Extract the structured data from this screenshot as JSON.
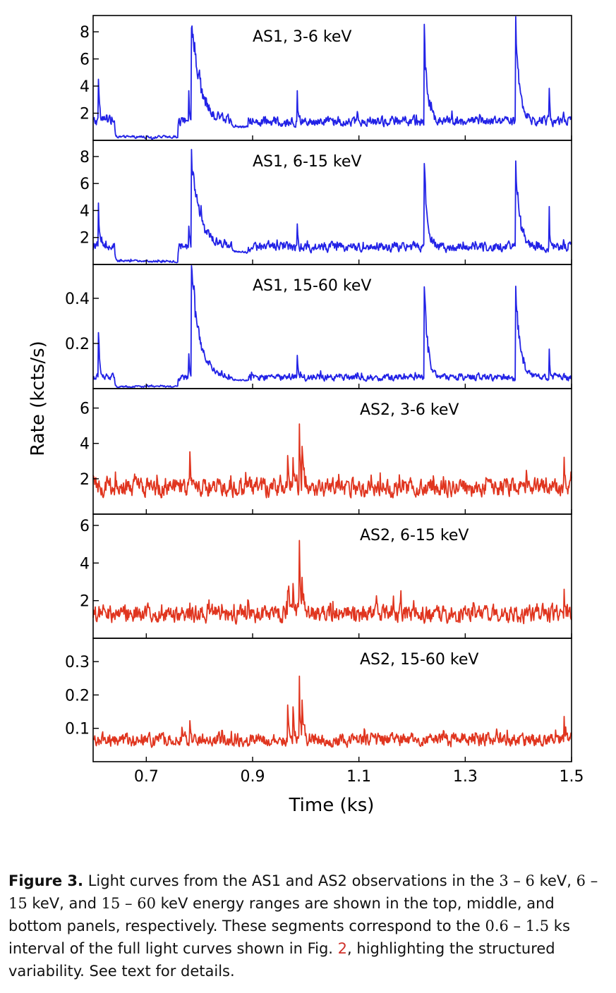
{
  "chart_data": [
    {
      "type": "line",
      "panel_label": "AS1, 3-6 keV",
      "color": "#2222e6",
      "ylabel": "",
      "ylim": [
        0,
        9.2
      ],
      "yticks": [
        2,
        4,
        6,
        8
      ],
      "xlim": [
        0.6,
        1.5
      ],
      "xticks": [
        0.7,
        0.9,
        1.1,
        1.3,
        1.5
      ],
      "baseline": 1.4,
      "noise": 0.55,
      "quiet": [
        [
          0.64,
          0.7
        ],
        [
          0.75,
          1.5
        ]
      ],
      "events": [
        {
          "t": 0.6095,
          "peak": 5.4,
          "decay": 0.002
        },
        {
          "t": 0.71,
          "peak": 0.0,
          "decay": 0.001
        },
        {
          "t": 0.7795,
          "peak": 4.3,
          "decay": 0.0015
        },
        {
          "t": 0.7845,
          "peak": 8.9,
          "decay": 0.016
        },
        {
          "t": 0.9837,
          "peak": 3.8,
          "decay": 0.0015
        },
        {
          "t": 1.2225,
          "peak": 8.5,
          "decay": 0.006
        },
        {
          "t": 1.3945,
          "peak": 8.3,
          "decay": 0.008
        },
        {
          "t": 1.4575,
          "peak": 5.8,
          "decay": 0.0012
        }
      ]
    },
    {
      "type": "line",
      "panel_label": "AS1, 6-15 keV",
      "color": "#2222e6",
      "ylabel": "",
      "ylim": [
        0,
        9.2
      ],
      "yticks": [
        2,
        4,
        6,
        8
      ],
      "xlim": [
        0.6,
        1.5
      ],
      "xticks": [
        0.7,
        0.9,
        1.1,
        1.3,
        1.5
      ],
      "baseline": 1.3,
      "noise": 0.5,
      "quiet": [
        [
          0.64,
          0.7
        ],
        [
          0.75,
          1.5
        ]
      ],
      "events": [
        {
          "t": 0.6095,
          "peak": 4.8,
          "decay": 0.002
        },
        {
          "t": 0.7795,
          "peak": 3.6,
          "decay": 0.0015
        },
        {
          "t": 0.7845,
          "peak": 8.3,
          "decay": 0.016
        },
        {
          "t": 0.9837,
          "peak": 3.0,
          "decay": 0.0015
        },
        {
          "t": 1.2225,
          "peak": 7.9,
          "decay": 0.006
        },
        {
          "t": 1.3945,
          "peak": 7.7,
          "decay": 0.008
        },
        {
          "t": 1.4575,
          "peak": 5.4,
          "decay": 0.0012
        }
      ]
    },
    {
      "type": "line",
      "panel_label": "AS1, 15-60 keV",
      "color": "#2222e6",
      "ylabel": "",
      "ylim": [
        0,
        0.55
      ],
      "yticks": [
        0.2,
        0.4
      ],
      "xlim": [
        0.6,
        1.5
      ],
      "xticks": [
        0.7,
        0.9,
        1.1,
        1.3,
        1.5
      ],
      "baseline": 0.05,
      "noise": 0.022,
      "quiet": [
        [
          0.64,
          0.7
        ],
        [
          0.75,
          1.5
        ]
      ],
      "events": [
        {
          "t": 0.6095,
          "peak": 0.33,
          "decay": 0.002
        },
        {
          "t": 0.7795,
          "peak": 0.2,
          "decay": 0.0015
        },
        {
          "t": 0.7845,
          "peak": 0.53,
          "decay": 0.016
        },
        {
          "t": 0.9837,
          "peak": 0.18,
          "decay": 0.0015
        },
        {
          "t": 1.2225,
          "peak": 0.52,
          "decay": 0.006
        },
        {
          "t": 1.3945,
          "peak": 0.5,
          "decay": 0.008
        },
        {
          "t": 1.4575,
          "peak": 0.28,
          "decay": 0.0012
        }
      ]
    },
    {
      "type": "line",
      "panel_label": "AS2, 3-6 keV",
      "color": "#e0351f",
      "ylabel": "",
      "ylim": [
        0,
        7.1
      ],
      "yticks": [
        2,
        4,
        6
      ],
      "xlim": [
        0.6,
        1.5
      ],
      "xticks": [
        0.7,
        0.9,
        1.1,
        1.3,
        1.5
      ],
      "baseline": 1.5,
      "noise": 0.75,
      "quiet": [],
      "events": [
        {
          "t": 0.7815,
          "peak": 4.1,
          "decay": 0.001
        },
        {
          "t": 0.9655,
          "peak": 3.8,
          "decay": 0.0025
        },
        {
          "t": 0.9755,
          "peak": 3.3,
          "decay": 0.0025
        },
        {
          "t": 0.9875,
          "peak": 6.9,
          "decay": 0.0015
        },
        {
          "t": 0.9925,
          "peak": 4.4,
          "decay": 0.003
        },
        {
          "t": 1.4855,
          "peak": 3.6,
          "decay": 0.0015
        }
      ]
    },
    {
      "type": "line",
      "panel_label": "AS2, 6-15 keV",
      "color": "#e0351f",
      "ylabel": "",
      "ylim": [
        0,
        6.6
      ],
      "yticks": [
        2,
        4,
        6
      ],
      "xlim": [
        0.6,
        1.5
      ],
      "xticks": [
        0.7,
        0.9,
        1.1,
        1.3,
        1.5
      ],
      "baseline": 1.3,
      "noise": 0.7,
      "quiet": [],
      "events": [
        {
          "t": 0.7815,
          "peak": 3.2,
          "decay": 0.001
        },
        {
          "t": 0.9655,
          "peak": 3.3,
          "decay": 0.0025
        },
        {
          "t": 0.9755,
          "peak": 3.0,
          "decay": 0.0025
        },
        {
          "t": 0.9875,
          "peak": 6.2,
          "decay": 0.0015
        },
        {
          "t": 0.9925,
          "peak": 3.9,
          "decay": 0.003
        },
        {
          "t": 1.4855,
          "peak": 2.8,
          "decay": 0.0015
        }
      ]
    },
    {
      "type": "line",
      "panel_label": "AS2, 15-60 keV",
      "color": "#e0351f",
      "ylabel": "",
      "ylim": [
        0,
        0.37
      ],
      "yticks": [
        0.1,
        0.2,
        0.3
      ],
      "xlim": [
        0.6,
        1.5
      ],
      "xticks": [
        0.7,
        0.9,
        1.1,
        1.3,
        1.5
      ],
      "baseline": 0.065,
      "noise": 0.03,
      "quiet": [],
      "events": [
        {
          "t": 0.7815,
          "peak": 0.16,
          "decay": 0.001
        },
        {
          "t": 0.9655,
          "peak": 0.19,
          "decay": 0.0025
        },
        {
          "t": 0.9755,
          "peak": 0.2,
          "decay": 0.0025
        },
        {
          "t": 0.9875,
          "peak": 0.35,
          "decay": 0.0015
        },
        {
          "t": 0.9925,
          "peak": 0.21,
          "decay": 0.003
        },
        {
          "t": 1.4855,
          "peak": 0.14,
          "decay": 0.0015
        }
      ]
    }
  ],
  "axes": {
    "ylabel": "Rate (kcts/s)",
    "xlabel": "Time (ks)"
  },
  "caption": {
    "label": "Figure 3.",
    "text_1": " Light curves from the AS1 and AS2 observations in the ",
    "range_1": "3 – 6",
    "text_2": " keV, ",
    "range_2": "6 – 15",
    "text_3": " keV, and ",
    "range_3": "15 – 60",
    "text_4": " keV energy ranges are shown in the top, middle, and bottom panels, respectively. These segments correspond to the ",
    "range_4": "0.6 – 1.5",
    "text_5": " ks interval of the full light curves shown in Fig. ",
    "fig_ref": "2",
    "text_6": ", highlighting the structured variability. See text for details."
  }
}
